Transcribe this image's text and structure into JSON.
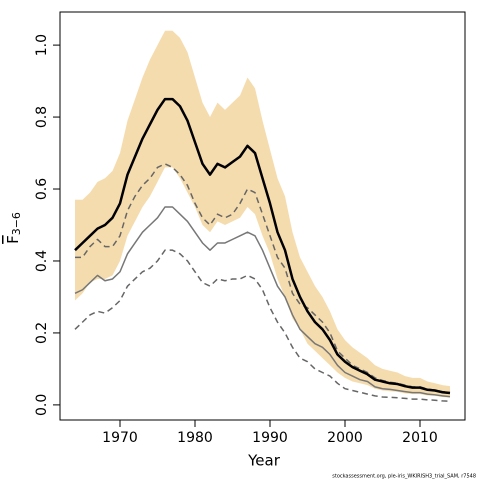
{
  "chart_data": {
    "type": "line",
    "x_label": "Year",
    "y_label_symbol": "F",
    "y_label_subscript": "3−6",
    "footnote": "stockassessment.org, ple-iris_WKIRISH3_trial_SAM, r7548",
    "x": [
      1964,
      1965,
      1966,
      1967,
      1968,
      1969,
      1970,
      1971,
      1972,
      1973,
      1974,
      1975,
      1976,
      1977,
      1978,
      1979,
      1980,
      1981,
      1982,
      1983,
      1984,
      1985,
      1986,
      1987,
      1988,
      1989,
      1990,
      1991,
      1992,
      1993,
      1994,
      1995,
      1996,
      1997,
      1998,
      1999,
      2000,
      2001,
      2002,
      2003,
      2004,
      2005,
      2006,
      2007,
      2008,
      2009,
      2010,
      2011,
      2012,
      2013,
      2014
    ],
    "xlim": [
      1962,
      2016
    ],
    "xticks": [
      1970,
      1980,
      1990,
      2000,
      2010
    ],
    "ylim": [
      -0.042,
      1.092
    ],
    "yticks": [
      {
        "value": 0,
        "label": "0.0"
      },
      0.2,
      0.4,
      0.6,
      0.8,
      {
        "value": 1,
        "label": "1.0"
      }
    ],
    "band": {
      "color": "#f5dcae",
      "upper": [
        0.57,
        0.57,
        0.59,
        0.62,
        0.63,
        0.65,
        0.7,
        0.79,
        0.85,
        0.91,
        0.96,
        1.0,
        1.04,
        1.04,
        1.02,
        0.98,
        0.91,
        0.84,
        0.8,
        0.84,
        0.82,
        0.84,
        0.86,
        0.91,
        0.88,
        0.79,
        0.71,
        0.63,
        0.58,
        0.48,
        0.41,
        0.37,
        0.33,
        0.3,
        0.26,
        0.21,
        0.18,
        0.16,
        0.145,
        0.13,
        0.11,
        0.1,
        0.095,
        0.09,
        0.08,
        0.075,
        0.075,
        0.065,
        0.06,
        0.055,
        0.052
      ],
      "lower": [
        0.29,
        0.31,
        0.34,
        0.35,
        0.35,
        0.36,
        0.4,
        0.47,
        0.51,
        0.55,
        0.58,
        0.62,
        0.66,
        0.66,
        0.63,
        0.59,
        0.55,
        0.5,
        0.48,
        0.51,
        0.5,
        0.51,
        0.52,
        0.55,
        0.53,
        0.47,
        0.42,
        0.35,
        0.3,
        0.24,
        0.21,
        0.17,
        0.15,
        0.13,
        0.11,
        0.09,
        0.075,
        0.065,
        0.06,
        0.055,
        0.045,
        0.04,
        0.038,
        0.036,
        0.032,
        0.03,
        0.03,
        0.026,
        0.025,
        0.022,
        0.02
      ]
    },
    "series": [
      {
        "color": "#666666",
        "style": "dashed",
        "width": 1.5,
        "values": [
          0.41,
          0.41,
          0.44,
          0.46,
          0.44,
          0.44,
          0.47,
          0.54,
          0.58,
          0.61,
          0.63,
          0.66,
          0.67,
          0.66,
          0.64,
          0.61,
          0.56,
          0.52,
          0.5,
          0.53,
          0.52,
          0.53,
          0.56,
          0.6,
          0.59,
          0.53,
          0.47,
          0.41,
          0.38,
          0.31,
          0.28,
          0.27,
          0.25,
          0.23,
          0.2,
          0.15,
          0.13,
          0.11,
          0.1,
          0.09,
          0.075,
          0.068,
          0.063,
          0.06,
          0.055,
          0.05,
          0.05,
          0.044,
          0.041,
          0.037,
          0.034
        ]
      },
      {
        "color": "#777777",
        "style": "solid",
        "width": 1.5,
        "values": [
          0.31,
          0.32,
          0.34,
          0.36,
          0.345,
          0.35,
          0.37,
          0.42,
          0.45,
          0.48,
          0.5,
          0.52,
          0.55,
          0.55,
          0.53,
          0.51,
          0.48,
          0.45,
          0.43,
          0.45,
          0.45,
          0.46,
          0.47,
          0.48,
          0.47,
          0.43,
          0.38,
          0.33,
          0.3,
          0.25,
          0.21,
          0.19,
          0.17,
          0.16,
          0.14,
          0.11,
          0.09,
          0.08,
          0.07,
          0.065,
          0.05,
          0.045,
          0.043,
          0.04,
          0.037,
          0.034,
          0.034,
          0.03,
          0.028,
          0.025,
          0.023
        ]
      },
      {
        "color": "#666666",
        "style": "dashed",
        "width": 1.5,
        "values": [
          0.21,
          0.23,
          0.25,
          0.26,
          0.255,
          0.27,
          0.29,
          0.33,
          0.35,
          0.37,
          0.38,
          0.4,
          0.43,
          0.43,
          0.42,
          0.4,
          0.37,
          0.34,
          0.33,
          0.35,
          0.345,
          0.35,
          0.35,
          0.36,
          0.35,
          0.32,
          0.27,
          0.23,
          0.2,
          0.16,
          0.13,
          0.12,
          0.1,
          0.09,
          0.08,
          0.06,
          0.045,
          0.04,
          0.035,
          0.03,
          0.025,
          0.022,
          0.021,
          0.02,
          0.018,
          0.016,
          0.016,
          0.014,
          0.013,
          0.011,
          0.01
        ]
      },
      {
        "color": "#000000",
        "style": "solid",
        "width": 2.5,
        "values": [
          0.43,
          0.45,
          0.47,
          0.49,
          0.5,
          0.52,
          0.56,
          0.64,
          0.69,
          0.74,
          0.78,
          0.82,
          0.85,
          0.85,
          0.83,
          0.79,
          0.73,
          0.67,
          0.64,
          0.67,
          0.66,
          0.675,
          0.69,
          0.72,
          0.7,
          0.63,
          0.56,
          0.48,
          0.43,
          0.35,
          0.3,
          0.26,
          0.23,
          0.21,
          0.18,
          0.14,
          0.12,
          0.105,
          0.095,
          0.085,
          0.07,
          0.065,
          0.06,
          0.058,
          0.052,
          0.048,
          0.048,
          0.042,
          0.04,
          0.035,
          0.033
        ]
      }
    ]
  }
}
